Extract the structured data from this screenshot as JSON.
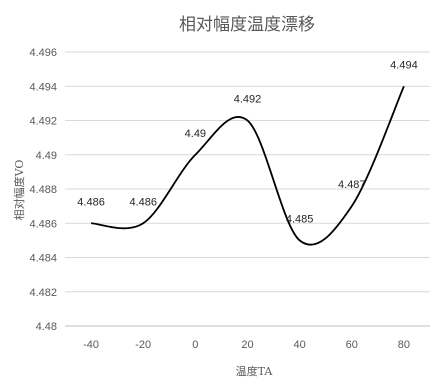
{
  "chart_data": {
    "type": "line",
    "title": "相对幅度温度漂移",
    "xlabel": "温度TA",
    "ylabel": "相对幅度VO",
    "x": [
      -40,
      -20,
      0,
      20,
      40,
      60,
      80
    ],
    "xticks": [
      "-40",
      "-20",
      "0",
      "20",
      "40",
      "60",
      "80"
    ],
    "xlim": [
      -50,
      90
    ],
    "ylim": [
      4.48,
      4.496
    ],
    "yticks": [
      "4.48",
      "4.482",
      "4.484",
      "4.486",
      "4.488",
      "4.49",
      "4.492",
      "4.494",
      "4.496"
    ],
    "grid": true,
    "smooth": true,
    "line_color": "#000000",
    "series": [
      {
        "values": [
          4.486,
          4.486,
          4.49,
          4.492,
          4.485,
          4.487,
          4.494
        ],
        "labels": [
          "4.486",
          "4.486",
          "4.49",
          "4.492",
          "4.485",
          "4.487",
          "4.494"
        ]
      }
    ]
  }
}
